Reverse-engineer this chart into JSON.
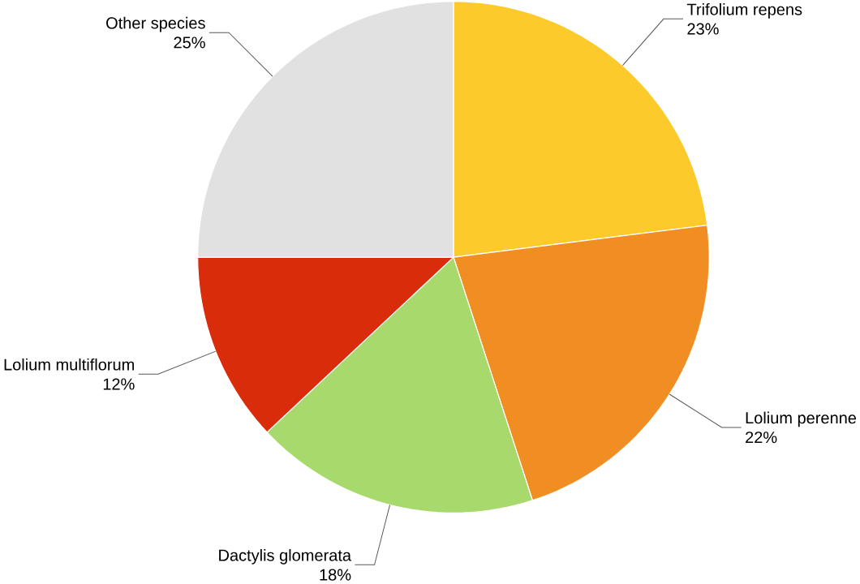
{
  "chart_data": {
    "type": "pie",
    "categories": [
      "Trifolium repens",
      "Lolium perenne",
      "Dactylis glomerata",
      "Lolium multiflorum",
      "Other species"
    ],
    "values": [
      23,
      22,
      18,
      12,
      25
    ],
    "colors": [
      "#fcca2a",
      "#f08d23",
      "#a7d96c",
      "#d92c0b",
      "#e1e1e1"
    ],
    "value_labels": [
      "23%",
      "22%",
      "18%",
      "12%",
      "25%"
    ]
  }
}
